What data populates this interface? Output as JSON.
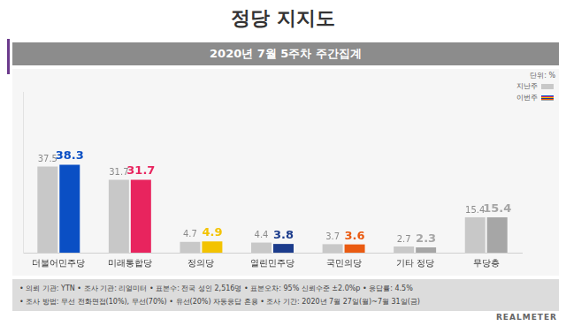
{
  "chart_data": {
    "type": "bar",
    "title": "정당 지지도",
    "subtitle": "2020년 7월 5주차 주간집계",
    "annotations": [
      "단위: %"
    ],
    "categories": [
      "더불어민주당",
      "미래통합당",
      "정의당",
      "열린민주당",
      "국민의당",
      "기타 정당",
      "무당층"
    ],
    "series": [
      {
        "name": "지난주",
        "color": "#c8c8c8",
        "values": [
          37.5,
          31.7,
          4.7,
          4.4,
          3.7,
          2.7,
          15.4
        ]
      },
      {
        "name": "이번주",
        "colors": [
          "#0a4fc4",
          "#e8245e",
          "#f3c300",
          "#1c3c8c",
          "#ea5b12",
          "#a6a6a6",
          "#a6a6a6"
        ],
        "values": [
          38.3,
          31.7,
          4.9,
          3.8,
          3.6,
          2.3,
          15.4
        ]
      }
    ],
    "ylim": [
      0,
      70
    ],
    "tick_labels": "x",
    "grid": false,
    "legend": "upper-right",
    "data_labels": true
  },
  "footer": [
    "• 의뢰 기관: YTN • 조사 기관: 리얼미터 • 표본수: 전국 성인 2,516명 • 표본오차: 95% 신뢰수준 ±2.0%p • 응답률: 4.5%",
    "• 조사 방법: 무선 전화면접(10%), 무선(70%) • 유선(20%) 자동응답 혼용 • 조사 기간: 2020년 7월 27일(월)~7월 31일(금)"
  ],
  "brand": "REALMETER"
}
